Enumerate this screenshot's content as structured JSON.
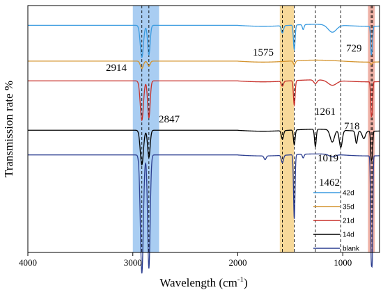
{
  "chart_data": {
    "type": "line",
    "xlabel": "Wavelength (cm",
    "xlabel_sup": "-1",
    "xlabel_end": ")",
    "ylabel": "Transmission rate %",
    "xlim": [
      4000,
      650
    ],
    "x_reversed": true,
    "xticks": [
      4000,
      3000,
      2000,
      1000
    ],
    "grid": false,
    "legend_position": "bottom-right",
    "highlight_bands": [
      {
        "from": 3000,
        "to": 2750,
        "color": "#a9cdf2"
      },
      {
        "from": 1600,
        "to": 1465,
        "color": "#f7d99a"
      },
      {
        "from": 760,
        "to": 695,
        "color": "#eeb1a6"
      }
    ],
    "dashed_lines": [
      2914,
      2847,
      1575,
      1462,
      1261,
      1019,
      729,
      718
    ],
    "annotations": [
      {
        "text": "2914",
        "x": 2914
      },
      {
        "text": "2847",
        "x": 2847
      },
      {
        "text": "1575",
        "x": 1575
      },
      {
        "text": "1462",
        "x": 1462
      },
      {
        "text": "1261",
        "x": 1261
      },
      {
        "text": "1019",
        "x": 1019
      },
      {
        "text": "729",
        "x": 729
      },
      {
        "text": "718",
        "x": 718
      }
    ],
    "series": [
      {
        "name": "42d",
        "color": "#3a9be0",
        "baseline": 0.92,
        "peaks": [
          [
            2914,
            0.13,
            15
          ],
          [
            2847,
            0.12,
            12
          ],
          [
            1575,
            0.03,
            10
          ],
          [
            1462,
            0.1,
            8
          ],
          [
            1377,
            0.02,
            8
          ],
          [
            1100,
            0.03,
            40
          ],
          [
            729,
            0.11,
            6
          ],
          [
            718,
            0.06,
            5
          ]
        ]
      },
      {
        "name": "35d",
        "color": "#d4942e",
        "baseline": 0.775,
        "peaks": [
          [
            2914,
            0.03,
            14
          ],
          [
            2847,
            0.02,
            12
          ],
          [
            1462,
            0.015,
            10
          ],
          [
            729,
            0.01,
            8
          ]
        ]
      },
      {
        "name": "21d",
        "color": "#c8312b",
        "baseline": 0.695,
        "peaks": [
          [
            2914,
            0.16,
            15
          ],
          [
            2847,
            0.15,
            12
          ],
          [
            1575,
            0.02,
            10
          ],
          [
            1462,
            0.1,
            8
          ],
          [
            1261,
            0.015,
            15
          ],
          [
            1100,
            0.02,
            40
          ],
          [
            729,
            0.13,
            6
          ],
          [
            718,
            0.09,
            5
          ]
        ]
      },
      {
        "name": "14d",
        "color": "#000000",
        "baseline": 0.495,
        "peaks": [
          [
            2914,
            0.14,
            15
          ],
          [
            2847,
            0.11,
            12
          ],
          [
            1575,
            0.035,
            10
          ],
          [
            1462,
            0.06,
            8
          ],
          [
            1261,
            0.07,
            8
          ],
          [
            1100,
            0.05,
            20
          ],
          [
            1019,
            0.07,
            14
          ],
          [
            870,
            0.05,
            10
          ],
          [
            800,
            0.03,
            15
          ],
          [
            729,
            0.11,
            6
          ],
          [
            718,
            0.08,
            5
          ]
        ]
      },
      {
        "name": "blank",
        "color": "#2c3e90",
        "baseline": 0.395,
        "peaks": [
          [
            2914,
            0.48,
            14
          ],
          [
            2847,
            0.46,
            12
          ],
          [
            1740,
            0.015,
            10
          ],
          [
            1575,
            0.03,
            10
          ],
          [
            1462,
            0.26,
            7
          ],
          [
            1377,
            0.015,
            8
          ],
          [
            1100,
            0.01,
            30
          ],
          [
            729,
            0.4,
            6
          ],
          [
            718,
            0.34,
            5
          ]
        ]
      }
    ]
  }
}
